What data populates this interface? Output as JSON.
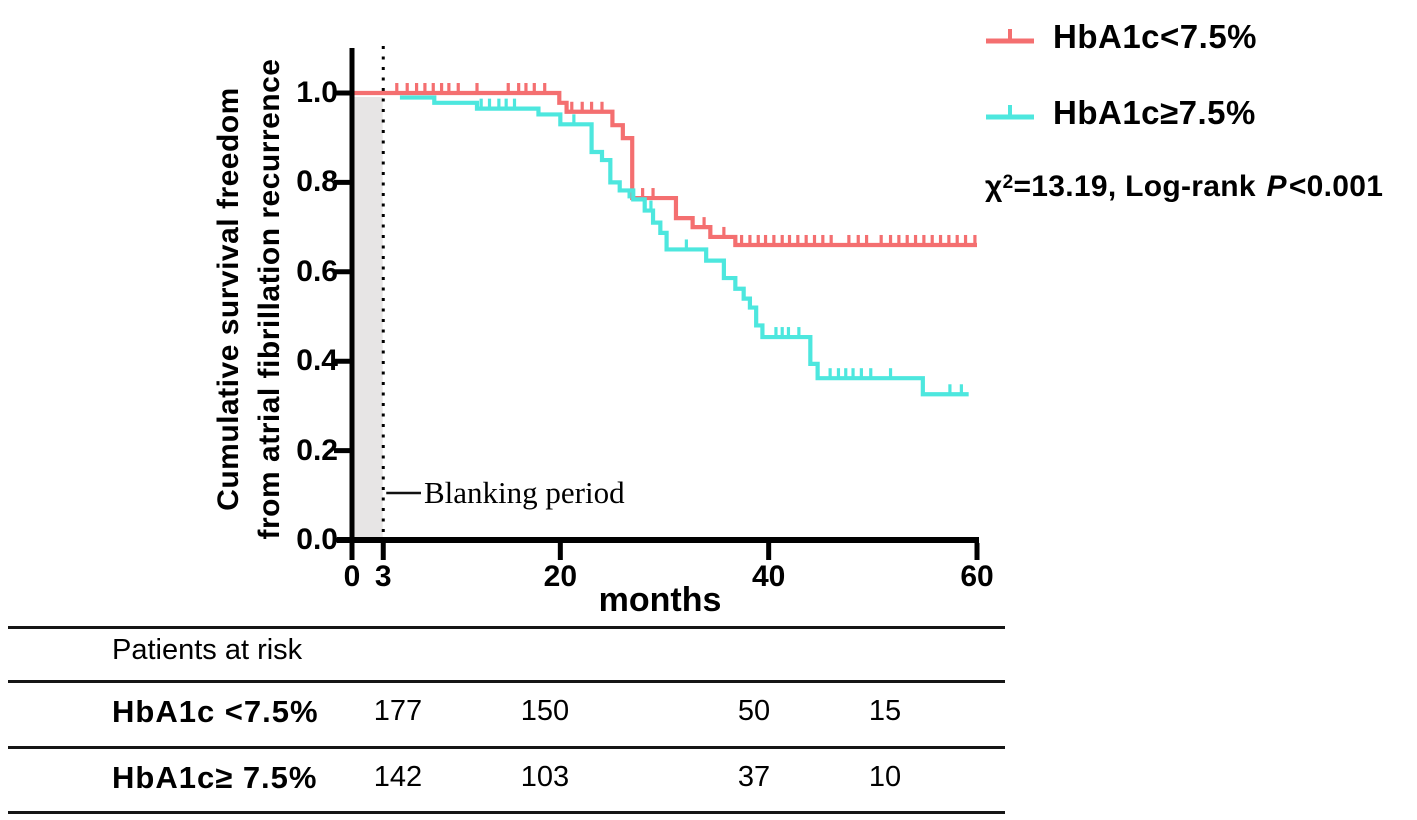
{
  "chart_data": {
    "type": "line",
    "subtype": "kaplan-meier-step",
    "x_label": "months",
    "y_label_line1": "Cumulative survival freedom",
    "y_label_line2": "from atrial fibrillation recurrence",
    "x_ticks": [
      0,
      3,
      20,
      40,
      60
    ],
    "y_ticks": [
      1.0,
      0.8,
      0.6,
      0.4,
      0.2,
      0.0
    ],
    "y_tick_labels": [
      "1.0",
      "0.8",
      "0.6",
      "0.4",
      "0.2",
      "0.0"
    ],
    "xlim": [
      0,
      60
    ],
    "ylim": [
      0.0,
      1.1
    ],
    "grid": false,
    "legend_position": "top-right",
    "blanking": {
      "label": "Blanking period",
      "x_start": 0,
      "x_end": 3,
      "band_color": "#E7E5E5"
    },
    "series": [
      {
        "name": "HbA1c<7.5%",
        "color": "#F46F70",
        "points": [
          [
            0,
            1.0
          ],
          [
            19.9,
            0.978
          ],
          [
            20.6,
            0.958
          ],
          [
            25.0,
            0.928
          ],
          [
            26.0,
            0.899
          ],
          [
            26.9,
            0.765
          ],
          [
            31.1,
            0.72
          ],
          [
            32.7,
            0.7
          ],
          [
            34.4,
            0.678
          ],
          [
            36.8,
            0.66
          ],
          [
            60,
            0.66
          ]
        ],
        "censors": [
          [
            4.3,
            1
          ],
          [
            5.3,
            1
          ],
          [
            6.2,
            1
          ],
          [
            7.0,
            1
          ],
          [
            7.8,
            1
          ],
          [
            8.6,
            1
          ],
          [
            9.3,
            1
          ],
          [
            10.2,
            1
          ],
          [
            12.0,
            1
          ],
          [
            15.0,
            1
          ],
          [
            16.0,
            1
          ],
          [
            16.7,
            1
          ],
          [
            17.5,
            1
          ],
          [
            18.5,
            1
          ],
          [
            21.1,
            0.958
          ],
          [
            22.1,
            0.958
          ],
          [
            23.0,
            0.958
          ],
          [
            24.0,
            0.958
          ],
          [
            27.9,
            0.765
          ],
          [
            28.9,
            0.765
          ],
          [
            33.8,
            0.7
          ],
          [
            35.7,
            0.678
          ],
          [
            37.4,
            0.66
          ],
          [
            38.2,
            0.66
          ],
          [
            39.0,
            0.66
          ],
          [
            39.7,
            0.66
          ],
          [
            40.5,
            0.66
          ],
          [
            41.3,
            0.66
          ],
          [
            42.0,
            0.66
          ],
          [
            42.8,
            0.66
          ],
          [
            43.6,
            0.66
          ],
          [
            44.4,
            0.66
          ],
          [
            45.2,
            0.66
          ],
          [
            46.0,
            0.66
          ],
          [
            47.7,
            0.66
          ],
          [
            48.6,
            0.66
          ],
          [
            49.4,
            0.66
          ],
          [
            50.8,
            0.66
          ],
          [
            51.7,
            0.66
          ],
          [
            52.5,
            0.66
          ],
          [
            53.3,
            0.66
          ],
          [
            54.1,
            0.66
          ],
          [
            54.9,
            0.66
          ],
          [
            55.7,
            0.66
          ],
          [
            56.5,
            0.66
          ],
          [
            57.3,
            0.66
          ],
          [
            58.1,
            0.66
          ],
          [
            58.9,
            0.66
          ],
          [
            59.8,
            0.66
          ]
        ]
      },
      {
        "name": "HbA1c≥7.5%",
        "color": "#4DE7DE",
        "points": [
          [
            4.6,
            0.99
          ],
          [
            7.9,
            0.978
          ],
          [
            12.0,
            0.965
          ],
          [
            17.9,
            0.952
          ],
          [
            20.0,
            0.93
          ],
          [
            23.0,
            0.868
          ],
          [
            24.0,
            0.85
          ],
          [
            24.8,
            0.8
          ],
          [
            25.7,
            0.782
          ],
          [
            27.0,
            0.762
          ],
          [
            28.1,
            0.737
          ],
          [
            28.9,
            0.71
          ],
          [
            29.6,
            0.687
          ],
          [
            30.2,
            0.65
          ],
          [
            34.0,
            0.625
          ],
          [
            35.7,
            0.586
          ],
          [
            36.8,
            0.562
          ],
          [
            37.6,
            0.54
          ],
          [
            38.2,
            0.52
          ],
          [
            38.8,
            0.48
          ],
          [
            39.4,
            0.454
          ],
          [
            44.0,
            0.394
          ],
          [
            44.7,
            0.362
          ],
          [
            54.8,
            0.326
          ],
          [
            59.2,
            0.326
          ]
        ],
        "censors": [
          [
            12.4,
            0.965
          ],
          [
            13.2,
            0.965
          ],
          [
            14.1,
            0.965
          ],
          [
            14.8,
            0.965
          ],
          [
            15.6,
            0.965
          ],
          [
            21.3,
            0.93
          ],
          [
            26.6,
            0.762
          ],
          [
            28.7,
            0.737
          ],
          [
            32.1,
            0.65
          ],
          [
            40.7,
            0.454
          ],
          [
            41.3,
            0.454
          ],
          [
            41.9,
            0.454
          ],
          [
            42.9,
            0.454
          ],
          [
            45.9,
            0.362
          ],
          [
            46.7,
            0.362
          ],
          [
            47.4,
            0.362
          ],
          [
            48.1,
            0.362
          ],
          [
            48.9,
            0.362
          ],
          [
            49.8,
            0.362
          ],
          [
            51.7,
            0.362
          ],
          [
            57.4,
            0.326
          ],
          [
            58.5,
            0.326
          ]
        ],
        "y_offset_note": "drawn slightly below red where both are near 1.0"
      }
    ],
    "stats": {
      "chi": "χ",
      "sup": "2",
      "mid": "=13.19, Log-rank ",
      "p": "P",
      "suffix": "<0.001"
    }
  },
  "legend": {
    "item1": "HbA1c<7.5%",
    "item2": "HbA1c≥7.5%"
  },
  "axis": {
    "months_label": "months"
  },
  "risk_table": {
    "title": "Patients at risk",
    "rows": [
      {
        "label": "HbA1c <7.5%",
        "values": [
          "177",
          "150",
          "50",
          "15"
        ]
      },
      {
        "label": "HbA1c≥ 7.5%",
        "values": [
          "142",
          "103",
          "37",
          "10"
        ]
      }
    ]
  },
  "colors": {
    "red_series": "#F46F70",
    "cyan_series": "#4DE7DE",
    "blanking_band": "#E7E5E5",
    "axis": "#000000"
  }
}
